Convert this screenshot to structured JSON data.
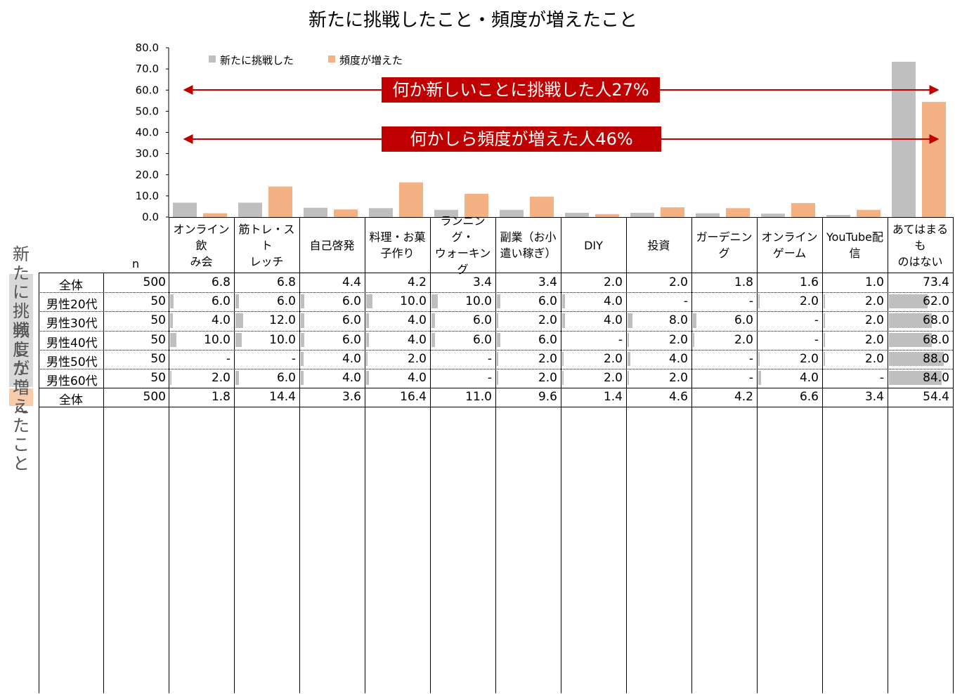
{
  "chart_data": {
    "type": "bar",
    "title": "新たに挑戦したこと・頻度が増えたこと",
    "ylim": [
      0,
      80
    ],
    "yticks": [
      "80.0",
      "70.0",
      "60.0",
      "50.0",
      "40.0",
      "30.0",
      "20.0",
      "10.0",
      "0.0"
    ],
    "categories": [
      "オンライン飲み会",
      "筋トレ・ストレッチ",
      "自己啓発",
      "料理・お菓子作り",
      "ランニング・ウォーキング",
      "副業（お小遣い稼ぎ）",
      "DIY",
      "投資",
      "ガーデニング",
      "オンラインゲーム",
      "YouTube配信",
      "あてはまるものはない"
    ],
    "legend_position": "top-left",
    "series": [
      {
        "name": "新たに挑戦した",
        "color": "#BFBFBF",
        "values": [
          6.8,
          6.8,
          4.4,
          4.2,
          3.4,
          3.4,
          2.0,
          2.0,
          1.8,
          1.6,
          1.0,
          73.4
        ]
      },
      {
        "name": "頻度が増えた",
        "color": "#F4B183",
        "values": [
          1.8,
          14.4,
          3.6,
          16.4,
          11.0,
          9.6,
          1.4,
          4.6,
          4.2,
          6.6,
          3.4,
          54.4
        ]
      }
    ],
    "annotations": [
      "何か新しいことに挑戦した人27%",
      "何かしら頻度が増えた人46%"
    ]
  },
  "table": {
    "n_label": "n",
    "headers": [
      [
        "オンライン飲",
        "み会"
      ],
      [
        "筋トレ・スト",
        "レッチ"
      ],
      [
        "自己啓発"
      ],
      [
        "料理・お菓",
        "子作り"
      ],
      [
        "ランニング・",
        "ウォーキング"
      ],
      [
        "副業（お小",
        "遣い稼ぎ）"
      ],
      [
        "DIY"
      ],
      [
        "投資"
      ],
      [
        "ガーデニング"
      ],
      [
        "オンライン",
        "ゲーム"
      ],
      [
        "YouTube配",
        "信"
      ],
      [
        "あてはまるも",
        "のはない"
      ]
    ],
    "groups": [
      {
        "label": "新たに挑戦したこと",
        "rows": [
          {
            "label": "全体",
            "n": "500",
            "v": [
              "6.8",
              "6.8",
              "4.4",
              "4.2",
              "3.4",
              "3.4",
              "2.0",
              "2.0",
              "1.8",
              "1.6",
              "1.0",
              "73.4"
            ]
          },
          {
            "label": "男性20代",
            "n": "50",
            "v": [
              "6.0",
              "6.0",
              "6.0",
              "10.0",
              "10.0",
              "6.0",
              "4.0",
              "-",
              "-",
              "2.0",
              "2.0",
              "62.0"
            ]
          },
          {
            "label": "男性30代",
            "n": "50",
            "v": [
              "4.0",
              "12.0",
              "6.0",
              "4.0",
              "6.0",
              "2.0",
              "4.0",
              "8.0",
              "6.0",
              "-",
              "2.0",
              "68.0"
            ]
          },
          {
            "label": "男性40代",
            "n": "50",
            "v": [
              "10.0",
              "10.0",
              "6.0",
              "4.0",
              "6.0",
              "6.0",
              "-",
              "2.0",
              "2.0",
              "-",
              "2.0",
              "68.0"
            ]
          },
          {
            "label": "男性50代",
            "n": "50",
            "v": [
              "-",
              "-",
              "4.0",
              "2.0",
              "-",
              "2.0",
              "2.0",
              "4.0",
              "-",
              "2.0",
              "2.0",
              "88.0"
            ]
          },
          {
            "label": "男性60代",
            "n": "50",
            "v": [
              "2.0",
              "6.0",
              "4.0",
              "4.0",
              "-",
              "2.0",
              "2.0",
              "2.0",
              "-",
              "4.0",
              "-",
              "84.0"
            ]
          }
        ]
      },
      {
        "label": "頻度が増えたこと",
        "rows": [
          {
            "label": "全体",
            "n": "500",
            "v": [
              "1.8",
              "14.4",
              "3.6",
              "16.4",
              "11.0",
              "9.6",
              "1.4",
              "4.6",
              "4.2",
              "6.6",
              "3.4",
              "54.4"
            ]
          }
        ]
      }
    ]
  },
  "colors": {
    "highlight": "#8B0000",
    "banner": "#C00000",
    "bar_gray": "#BFBFBF",
    "bar_orange": "#F4B183",
    "cell_bar": "#BFBFBF",
    "side_gray": "#D9D9D9",
    "side_orange": "#F8CBAD"
  }
}
